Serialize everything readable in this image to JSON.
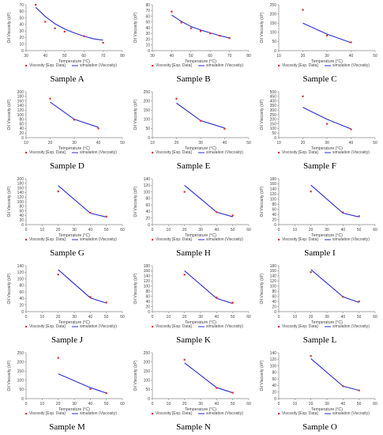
{
  "legend": {
    "exp_label": "Viscosity [Exp. Data]",
    "sim_label": "simulation (Viscosity)"
  },
  "colors": {
    "exp": "#e03030",
    "sim": "#2b2bd0",
    "axis": "#888888",
    "text": "#444444"
  },
  "chart_data": [
    {
      "type": "line",
      "caption": "Sample A",
      "xlabel": "Temperature (°C)",
      "ylabel": "Oil Viscosity (cP)",
      "xlim": [
        30,
        80
      ],
      "xticks": [
        30,
        40,
        50,
        60,
        70,
        80
      ],
      "ylim": [
        0,
        70
      ],
      "yticks": [
        0,
        10,
        20,
        30,
        40,
        50,
        60,
        70
      ],
      "exp": {
        "x": [
          35,
          40,
          45,
          50,
          60,
          70
        ],
        "y": [
          70,
          44,
          34,
          29,
          22,
          12
        ]
      },
      "sim": {
        "x": [
          35,
          40,
          45,
          50,
          55,
          60,
          65,
          70
        ],
        "y": [
          66,
          52,
          41,
          33,
          27,
          22,
          18,
          16
        ]
      }
    },
    {
      "type": "line",
      "caption": "Sample B",
      "xlabel": "Temperature (°C)",
      "ylabel": "Oil Viscosity (cP)",
      "xlim": [
        30,
        80
      ],
      "xticks": [
        30,
        40,
        50,
        60,
        70,
        80
      ],
      "ylim": [
        0,
        80
      ],
      "yticks": [
        0,
        10,
        20,
        30,
        40,
        50,
        60,
        70,
        80
      ],
      "exp": {
        "x": [
          40,
          45,
          50,
          55,
          60,
          65,
          70
        ],
        "y": [
          68,
          49,
          39,
          34,
          30,
          26,
          22
        ]
      },
      "sim": {
        "x": [
          40,
          45,
          50,
          55,
          60,
          65,
          70
        ],
        "y": [
          62,
          51,
          42,
          36,
          31,
          26,
          22
        ]
      }
    },
    {
      "type": "line",
      "caption": "Sample C",
      "xlabel": "Temperature (°C)",
      "ylabel": "Oil Viscosity (cP)",
      "xlim": [
        10,
        50
      ],
      "xticks": [
        10,
        20,
        30,
        40,
        50
      ],
      "ylim": [
        0,
        250
      ],
      "yticks": [
        0,
        50,
        100,
        150,
        200,
        250
      ],
      "exp": {
        "x": [
          20,
          30,
          40
        ],
        "y": [
          222,
          82,
          45
        ]
      },
      "sim": {
        "x": [
          20,
          30,
          40
        ],
        "y": [
          150,
          90,
          43
        ]
      }
    },
    {
      "type": "line",
      "caption": "Sample D",
      "xlabel": "Temperature (°C)",
      "ylabel": "Oil Viscosity (cP)",
      "xlim": [
        10,
        50
      ],
      "xticks": [
        10,
        20,
        30,
        40,
        50
      ],
      "ylim": [
        0,
        200
      ],
      "yticks": [
        0,
        20,
        40,
        60,
        80,
        100,
        120,
        140,
        160,
        180,
        200
      ],
      "exp": {
        "x": [
          20,
          30,
          40
        ],
        "y": [
          170,
          78,
          40
        ]
      },
      "sim": {
        "x": [
          20,
          30,
          40
        ],
        "y": [
          155,
          80,
          45
        ]
      }
    },
    {
      "type": "line",
      "caption": "Sample E",
      "xlabel": "Temperature (°C)",
      "ylabel": "Oil Viscosity (cP)",
      "xlim": [
        10,
        50
      ],
      "xticks": [
        10,
        20,
        30,
        40,
        50
      ],
      "ylim": [
        0,
        250
      ],
      "yticks": [
        0,
        50,
        100,
        150,
        200,
        250
      ],
      "exp": {
        "x": [
          20,
          30,
          40
        ],
        "y": [
          212,
          92,
          48
        ]
      },
      "sim": {
        "x": [
          20,
          30,
          40
        ],
        "y": [
          188,
          93,
          52
        ]
      }
    },
    {
      "type": "line",
      "caption": "Sample F",
      "xlabel": "Temperature (°C)",
      "ylabel": "Oil Viscosity (cP)",
      "xlim": [
        10,
        50
      ],
      "xticks": [
        10,
        20,
        30,
        40,
        50
      ],
      "ylim": [
        0,
        500
      ],
      "yticks": [
        0,
        50,
        100,
        150,
        200,
        250,
        300,
        350,
        400,
        450,
        500
      ],
      "exp": {
        "x": [
          20,
          30,
          40
        ],
        "y": [
          450,
          150,
          90
        ]
      },
      "sim": {
        "x": [
          20,
          30,
          40
        ],
        "y": [
          330,
          200,
          95
        ]
      }
    },
    {
      "type": "line",
      "caption": "Sample G",
      "xlabel": "Temperature (°C)",
      "ylabel": "Oil Viscosity (cP)",
      "xlim": [
        0,
        60
      ],
      "xticks": [
        0,
        10,
        20,
        30,
        40,
        50,
        60
      ],
      "ylim": [
        0,
        200
      ],
      "yticks": [
        0,
        20,
        40,
        60,
        80,
        100,
        120,
        140,
        160,
        180,
        200
      ],
      "exp": {
        "x": [
          20,
          40,
          50
        ],
        "y": [
          145,
          52,
          35
        ]
      },
      "sim": {
        "x": [
          20,
          40,
          50
        ],
        "y": [
          170,
          50,
          33
        ]
      }
    },
    {
      "type": "line",
      "caption": "Sample H",
      "xlabel": "Temperature (°C)",
      "ylabel": "Oil Viscosity (cP)",
      "xlim": [
        0,
        60
      ],
      "xticks": [
        0,
        10,
        20,
        30,
        40,
        50,
        60
      ],
      "ylim": [
        0,
        140
      ],
      "yticks": [
        0,
        20,
        40,
        60,
        80,
        100,
        120,
        140
      ],
      "exp": {
        "x": [
          20,
          40,
          50
        ],
        "y": [
          100,
          38,
          28
        ]
      },
      "sim": {
        "x": [
          20,
          40,
          50
        ],
        "y": [
          120,
          38,
          24
        ]
      }
    },
    {
      "type": "line",
      "caption": "Sample I",
      "xlabel": "Temperature (°C)",
      "ylabel": "Oil Viscosity (cP)",
      "xlim": [
        0,
        60
      ],
      "xticks": [
        0,
        10,
        20,
        30,
        40,
        50,
        60
      ],
      "ylim": [
        0,
        180
      ],
      "yticks": [
        0,
        20,
        40,
        60,
        80,
        100,
        120,
        140,
        160,
        180
      ],
      "exp": {
        "x": [
          20,
          40,
          50
        ],
        "y": [
          130,
          48,
          33
        ]
      },
      "sim": {
        "x": [
          20,
          40,
          50
        ],
        "y": [
          155,
          45,
          30
        ]
      }
    },
    {
      "type": "line",
      "caption": "Sample J",
      "xlabel": "Temperature (°C)",
      "ylabel": "Oil Viscosity (cP)",
      "xlim": [
        0,
        60
      ],
      "xticks": [
        0,
        10,
        20,
        30,
        40,
        50,
        60
      ],
      "ylim": [
        0,
        140
      ],
      "yticks": [
        0,
        20,
        40,
        60,
        80,
        100,
        120,
        140
      ],
      "exp": {
        "x": [
          20,
          40,
          50
        ],
        "y": [
          113,
          45,
          28
        ]
      },
      "sim": {
        "x": [
          20,
          40,
          50
        ],
        "y": [
          128,
          42,
          26
        ]
      }
    },
    {
      "type": "line",
      "caption": "Sample K",
      "xlabel": "Temperature (°C)",
      "ylabel": "Oil Viscosity (cP)",
      "xlim": [
        0,
        60
      ],
      "xticks": [
        0,
        10,
        20,
        30,
        40,
        50,
        60
      ],
      "ylim": [
        0,
        180
      ],
      "yticks": [
        0,
        20,
        40,
        60,
        80,
        100,
        120,
        140,
        160,
        180
      ],
      "exp": {
        "x": [
          20,
          40,
          50
        ],
        "y": [
          145,
          55,
          35
        ]
      },
      "sim": {
        "x": [
          20,
          40,
          50
        ],
        "y": [
          160,
          52,
          32
        ]
      }
    },
    {
      "type": "line",
      "caption": "Sample L",
      "xlabel": "Temperature (°C)",
      "ylabel": "Oil Viscosity (cP)",
      "xlim": [
        0,
        60
      ],
      "xticks": [
        0,
        10,
        20,
        30,
        40,
        50,
        60
      ],
      "ylim": [
        0,
        180
      ],
      "yticks": [
        0,
        20,
        40,
        60,
        80,
        100,
        120,
        140,
        160,
        180
      ],
      "exp": {
        "x": [
          20,
          40,
          50
        ],
        "y": [
          155,
          58,
          40
        ]
      },
      "sim": {
        "x": [
          20,
          40,
          50
        ],
        "y": [
          165,
          58,
          36
        ]
      }
    },
    {
      "type": "line",
      "caption": "Sample M",
      "xlabel": "Temperature (°C)",
      "ylabel": "Oil Viscosity (cP)",
      "xlim": [
        0,
        60
      ],
      "xticks": [
        0,
        10,
        20,
        30,
        40,
        50,
        60
      ],
      "ylim": [
        0,
        250
      ],
      "yticks": [
        0,
        50,
        100,
        150,
        200,
        250
      ],
      "exp": {
        "x": [
          20,
          40,
          50
        ],
        "y": [
          222,
          52,
          30
        ]
      },
      "sim": {
        "x": [
          20,
          40,
          50
        ],
        "y": [
          135,
          60,
          30
        ]
      }
    },
    {
      "type": "line",
      "caption": "Sample N",
      "xlabel": "Temperature (°C)",
      "ylabel": "Oil Viscosity (cP)",
      "xlim": [
        0,
        60
      ],
      "xticks": [
        0,
        10,
        20,
        30,
        40,
        50,
        60
      ],
      "ylim": [
        0,
        250
      ],
      "yticks": [
        0,
        50,
        100,
        150,
        200,
        250
      ],
      "exp": {
        "x": [
          20,
          40,
          50
        ],
        "y": [
          212,
          58,
          32
        ]
      },
      "sim": {
        "x": [
          20,
          40,
          50
        ],
        "y": [
          195,
          60,
          32
        ]
      }
    },
    {
      "type": "line",
      "caption": "Sample O",
      "xlabel": "Temperature (°C)",
      "ylabel": "Oil Viscosity (cP)",
      "xlim": [
        0,
        60
      ],
      "xticks": [
        0,
        10,
        20,
        30,
        40,
        50,
        60
      ],
      "ylim": [
        0,
        140
      ],
      "yticks": [
        0,
        20,
        40,
        60,
        80,
        100,
        120,
        140
      ],
      "exp": {
        "x": [
          20,
          40,
          50
        ],
        "y": [
          130,
          38,
          25
        ]
      },
      "sim": {
        "x": [
          20,
          40,
          50
        ],
        "y": [
          122,
          38,
          25
        ]
      }
    }
  ]
}
